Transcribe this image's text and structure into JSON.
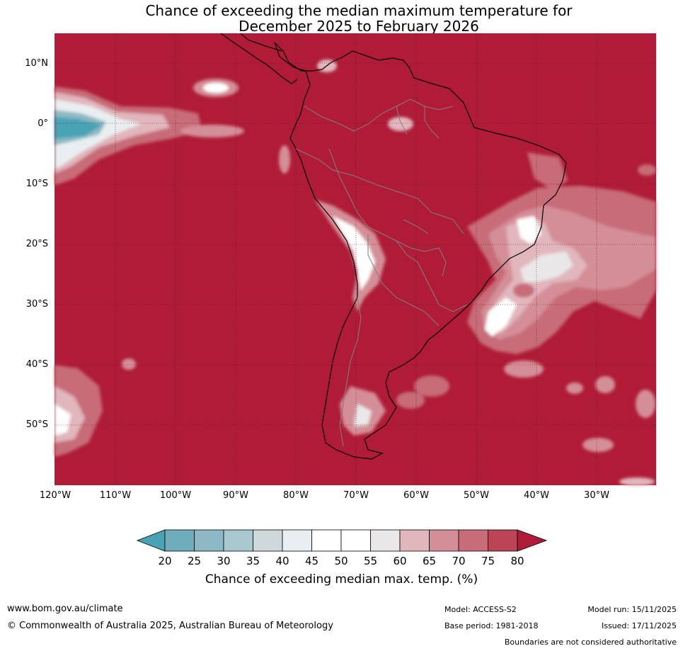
{
  "title_line1": "Chance of exceeding the median maximum temperature for",
  "title_line2": "December 2025 to February 2026",
  "map": {
    "ocean_color": "#b01c37",
    "lat_labels": [
      "10°N",
      "0°",
      "10°S",
      "20°S",
      "30°S",
      "40°S",
      "50°S"
    ],
    "lon_labels": [
      "120°W",
      "110°W",
      "100°W",
      "90°W",
      "80°W",
      "70°W",
      "60°W",
      "50°W",
      "40°W",
      "30°W"
    ]
  },
  "colorbar": {
    "ticks": [
      "20",
      "25",
      "30",
      "35",
      "40",
      "45",
      "50",
      "55",
      "60",
      "65",
      "70",
      "75",
      "80"
    ],
    "colors": [
      "#4aa3b4",
      "#6fadbb",
      "#8cb9c5",
      "#a9c8cf",
      "#cfd8db",
      "#e9eff1",
      "#ffffff",
      "#ffffff",
      "#e9e7e8",
      "#e1b6bd",
      "#d48e97",
      "#c76c78",
      "#bb4556",
      "#b01c37"
    ],
    "label": "Chance of exceeding median max. temp. (%)"
  },
  "footer": {
    "website": "www.bom.gov.au/climate",
    "copyright": "© Commonwealth of Australia 2025, Australian Bureau of Meteorology",
    "model": "Model: ACCESS-S2",
    "base_period": "Base period: 1981-2018",
    "model_run": "Model run: 15/11/2025",
    "issued": "Issued: 17/11/2025",
    "disclaimer": "Boundaries are not considered authoritative"
  }
}
